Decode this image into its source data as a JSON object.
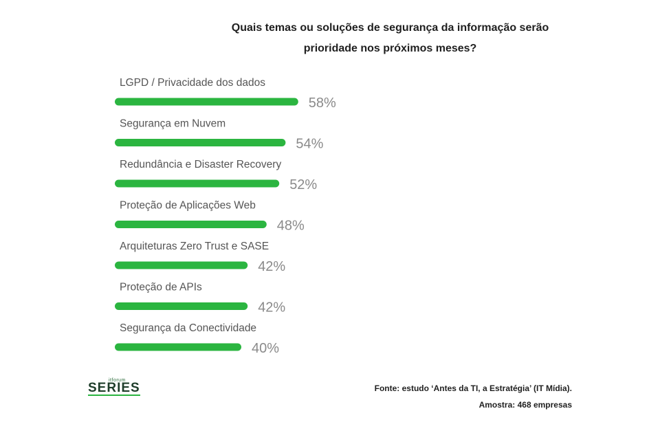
{
  "title_line1": "Quais temas ou soluções de segurança da informação serão",
  "title_line2": "prioridade nos próximos meses?",
  "chart_data": {
    "type": "bar",
    "orientation": "horizontal",
    "categories": [
      "LGPD / Privacidade dos dados",
      "Segurança em Nuvem",
      "Redundância e Disaster Recovery",
      "Proteção de Aplicações Web",
      "Arquiteturas Zero Trust e SASE",
      "Proteção de APIs",
      "Segurança da Conectividade"
    ],
    "values": [
      58,
      54,
      52,
      48,
      42,
      42,
      40
    ],
    "value_labels": [
      "58%",
      "54%",
      "52%",
      "48%",
      "42%",
      "42%",
      "40%"
    ],
    "unit": "%",
    "bar_color": "#2bb540",
    "grid": false
  },
  "logo": {
    "small_text": "itforum",
    "main_text": "SERIES"
  },
  "source": {
    "line1": "Fonte: estudo ‘Antes da TI, a Estratégia’ (IT Mídia).",
    "line2": "Amostra: 468 empresas"
  }
}
